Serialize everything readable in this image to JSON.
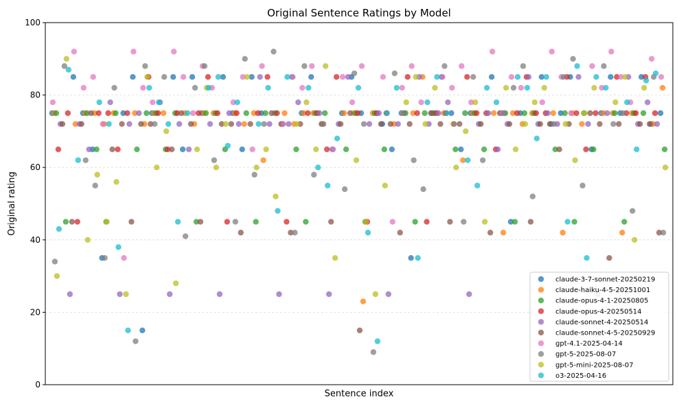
{
  "chart_data": {
    "type": "scatter",
    "title": "Original Sentence Ratings by Model",
    "xlabel": "Sentence index",
    "ylabel": "Original rating",
    "ylim": [
      0,
      100
    ],
    "yticks": [
      "0",
      "20",
      "40",
      "60",
      "80",
      "100"
    ],
    "xlim": [
      -1,
      50
    ],
    "grid": "horizontal dashed",
    "legend_position": "lower-right",
    "x": [
      0,
      1,
      2,
      3,
      4,
      5,
      6,
      7,
      8,
      9,
      10,
      11,
      12,
      13,
      14,
      15,
      16,
      17,
      18,
      19,
      20,
      21,
      22,
      23,
      24,
      25,
      26,
      27,
      28,
      29,
      30,
      31,
      32,
      33,
      34,
      35,
      36,
      37,
      38,
      39,
      40,
      41,
      42,
      43,
      44,
      45,
      46,
      47,
      48,
      49
    ],
    "series": [
      {
        "name": "claude-3-7-sonnet-20250219",
        "color": "#1f77b4",
        "values": [
          75,
          85,
          75,
          65,
          35,
          75,
          85,
          15,
          75,
          85,
          65,
          85,
          75,
          85,
          75,
          65,
          85,
          75,
          72,
          85,
          75,
          85,
          65,
          75,
          85,
          75,
          72,
          65,
          75,
          35,
          75,
          85,
          75,
          65,
          75,
          85,
          75,
          45,
          75,
          85,
          72,
          75,
          85,
          65,
          75,
          85,
          75,
          85,
          72,
          75
        ]
      },
      {
        "name": "claude-haiku-4-5-20251001",
        "color": "#ff7f0e",
        "values": [
          75,
          72,
          75,
          75,
          72,
          75,
          75,
          72,
          75,
          75,
          75,
          72,
          75,
          75,
          75,
          72,
          75,
          62,
          75,
          72,
          75,
          75,
          72,
          75,
          75,
          23,
          75,
          72,
          75,
          75,
          85,
          75,
          72,
          62,
          75,
          75,
          42,
          75,
          72,
          75,
          75,
          42,
          75,
          72,
          75,
          75,
          42,
          75,
          72,
          82
        ]
      },
      {
        "name": "claude-opus-4-1-20250805",
        "color": "#2ca02c",
        "values": [
          75,
          45,
          75,
          65,
          45,
          75,
          65,
          75,
          75,
          65,
          75,
          45,
          75,
          75,
          65,
          75,
          45,
          75,
          75,
          65,
          45,
          75,
          75,
          65,
          75,
          45,
          75,
          65,
          75,
          45,
          75,
          75,
          65,
          75,
          75,
          65,
          75,
          45,
          75,
          75,
          65,
          75,
          45,
          75,
          65,
          75,
          45,
          75,
          75,
          65
        ]
      },
      {
        "name": "claude-opus-4-20250514",
        "color": "#d62728",
        "values": [
          65,
          75,
          45,
          75,
          75,
          65,
          75,
          85,
          75,
          65,
          75,
          75,
          85,
          75,
          45,
          75,
          75,
          85,
          75,
          45,
          75,
          75,
          65,
          85,
          75,
          45,
          75,
          75,
          85,
          75,
          45,
          75,
          75,
          85,
          75,
          75,
          65,
          75,
          85,
          75,
          75,
          85,
          75,
          65,
          75,
          85,
          75,
          75,
          85,
          75
        ]
      },
      {
        "name": "claude-sonnet-4-20250514",
        "color": "#9467bd",
        "values": [
          72,
          25,
          72,
          65,
          78,
          25,
          72,
          75,
          78,
          25,
          72,
          65,
          72,
          25,
          75,
          72,
          85,
          72,
          25,
          72,
          78,
          75,
          25,
          72,
          85,
          72,
          75,
          25,
          72,
          85,
          72,
          75,
          78,
          25,
          72,
          75,
          65,
          72,
          85,
          72,
          75,
          72,
          85,
          72,
          25,
          75,
          85,
          72,
          78,
          72
        ]
      },
      {
        "name": "claude-sonnet-4-5-20250929",
        "color": "#8c564b",
        "values": [
          72,
          45,
          72,
          75,
          65,
          72,
          45,
          72,
          72,
          65,
          75,
          72,
          45,
          72,
          72,
          42,
          72,
          75,
          72,
          42,
          72,
          72,
          45,
          72,
          75,
          15,
          72,
          72,
          42,
          72,
          75,
          72,
          45,
          72,
          72,
          42,
          75,
          72,
          45,
          72,
          72,
          65,
          72,
          75,
          72,
          35,
          72,
          72,
          72,
          42
        ]
      },
      {
        "name": "gpt-4.1-2025-04-14",
        "color": "#e377c2",
        "values": [
          78,
          92,
          82,
          85,
          72,
          35,
          92,
          82,
          78,
          92,
          85,
          75,
          88,
          82,
          78,
          85,
          65,
          88,
          72,
          85,
          82,
          88,
          65,
          85,
          78,
          88,
          85,
          45,
          82,
          88,
          78,
          85,
          82,
          88,
          78,
          92,
          75,
          85,
          82,
          78,
          92,
          85,
          75,
          88,
          82,
          92,
          85,
          78,
          90,
          85
        ]
      },
      {
        "name": "gpt-5-2025-08-07",
        "color": "#7f7f7f",
        "values": [
          34,
          88,
          62,
          55,
          35,
          82,
          12,
          88,
          72,
          85,
          41,
          82,
          88,
          62,
          45,
          90,
          58,
          72,
          92,
          42,
          88,
          58,
          72,
          54,
          86,
          72,
          9,
          86,
          75,
          62,
          54,
          88,
          72,
          45,
          85,
          62,
          75,
          82,
          88,
          52,
          72,
          85,
          90,
          55,
          88,
          72,
          75,
          48,
          85,
          42
        ]
      },
      {
        "name": "gpt-5-mini-2025-08-07",
        "color": "#bcbd22",
        "values": [
          30,
          90,
          40,
          58,
          45,
          56,
          25,
          85,
          60,
          70,
          28,
          65,
          82,
          60,
          72,
          85,
          60,
          65,
          52,
          72,
          78,
          65,
          88,
          35,
          62,
          45,
          25,
          55,
          78,
          85,
          72,
          82,
          60,
          70,
          78,
          45,
          82,
          65,
          72,
          78,
          82,
          72,
          62,
          75,
          82,
          78,
          85,
          40,
          82,
          60
        ]
      },
      {
        "name": "o3-2025-04-16",
        "color": "#17becf",
        "values": [
          43,
          87,
          62,
          78,
          72,
          38,
          15,
          82,
          78,
          72,
          45,
          75,
          82,
          85,
          66,
          78,
          72,
          82,
          48,
          85,
          82,
          60,
          55,
          68,
          82,
          42,
          12,
          75,
          82,
          35,
          78,
          85,
          75,
          62,
          55,
          82,
          78,
          85,
          82,
          68,
          85,
          45,
          88,
          35,
          85,
          82,
          78,
          65,
          84,
          86
        ]
      }
    ]
  }
}
